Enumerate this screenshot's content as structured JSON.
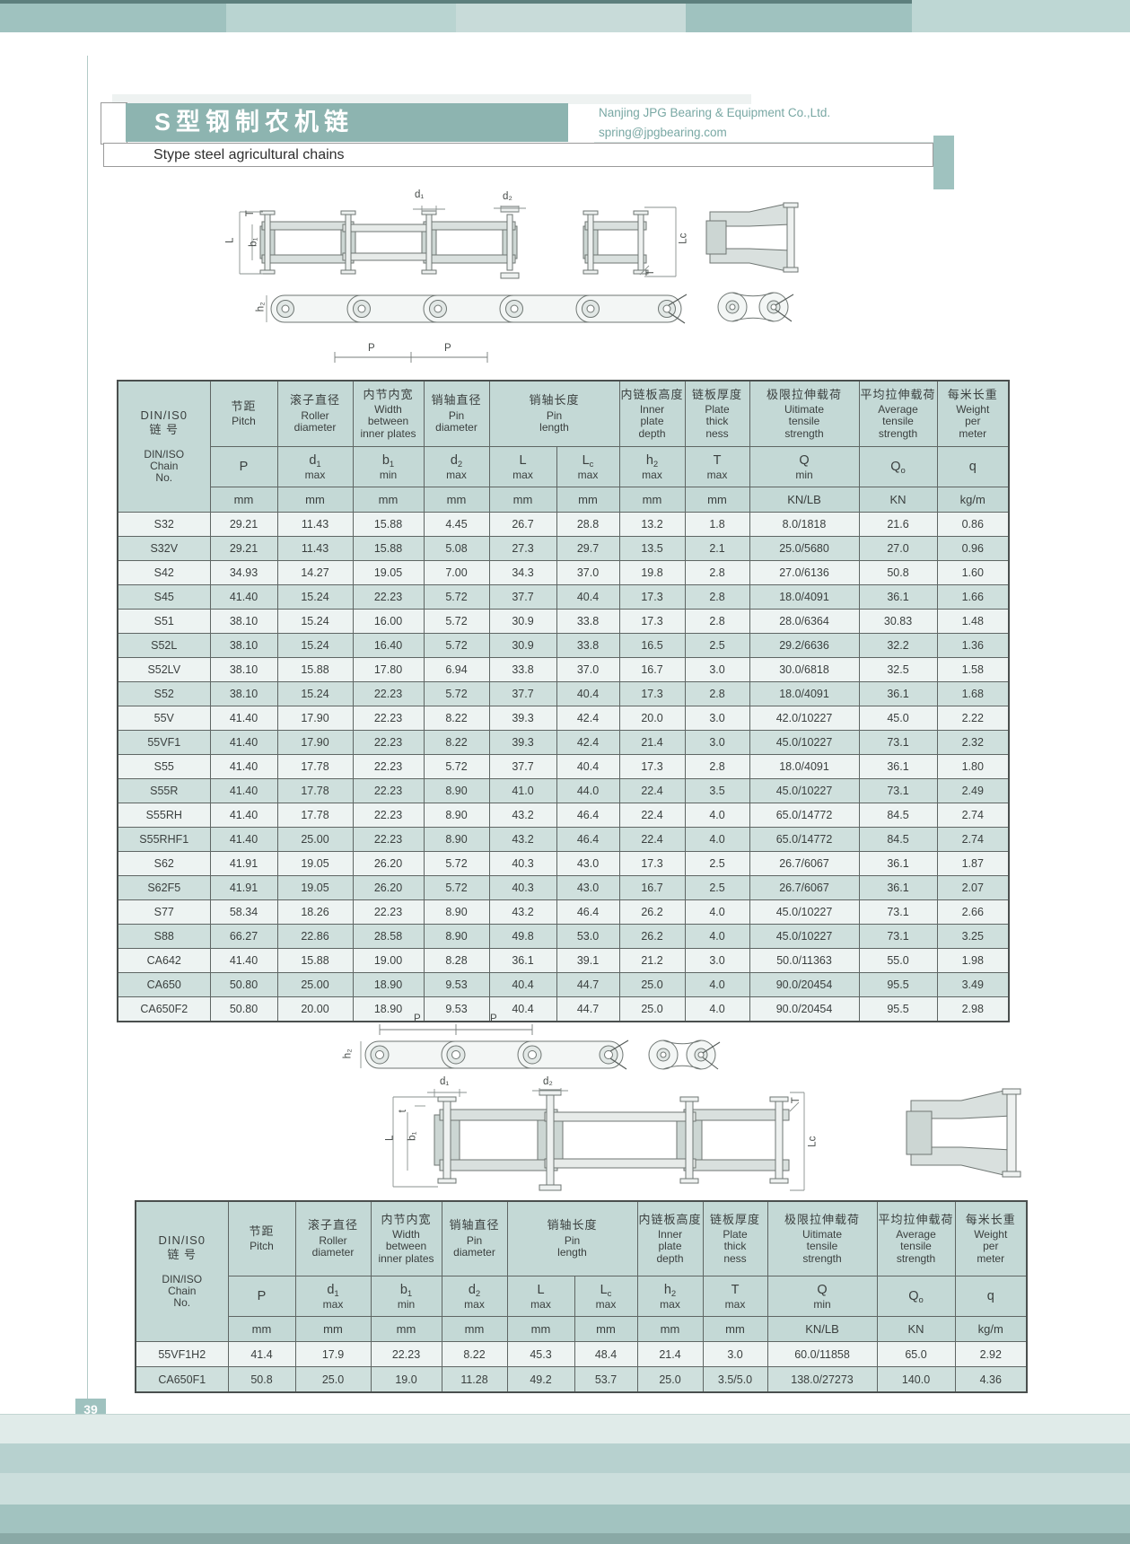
{
  "page": {
    "number": "39",
    "title_cn": "S型钢制农机链",
    "title_en": "Stype steel agricultural chains",
    "company": "Nanjing JPG Bearing & Equipment Co.,Ltd.",
    "email": "spring@jpgbearing.com"
  },
  "colors": {
    "accent_teal": "#8db4b0",
    "band_medium": "#9fc2bf",
    "band_light": "#b9d4d1",
    "band_lighter": "#c8dbd9",
    "table_header_bg": "#c4d9d6",
    "row_light": "#edf3f2",
    "row_teal": "#cfe0dd"
  },
  "diagram_labels": {
    "d1": "d₁",
    "d2": "d₂",
    "b1": "b₁",
    "h2": "h₂",
    "L": "L",
    "Lc": "Lc",
    "T": "T",
    "t": "t",
    "P": "P"
  },
  "table_header": {
    "chain": {
      "cn": "DIN/IS0\n链 号",
      "en": "DIN/ISO\nChain\nNo."
    },
    "cols": {
      "pitch": {
        "cn": "节距",
        "en": "Pitch"
      },
      "roller": {
        "cn": "滚子直径",
        "en": "Roller\ndiameter"
      },
      "width": {
        "cn": "内节内宽",
        "en": "Width\nbetween\ninner plates"
      },
      "pin_dia": {
        "cn": "销轴直径",
        "en": "Pin\ndiameter"
      },
      "pin_len": {
        "cn": "销轴长度",
        "en": "Pin\nlength"
      },
      "inner": {
        "cn": "内链板高度",
        "en": "Inner\nplate\ndepth"
      },
      "plate": {
        "cn": "链板厚度",
        "en": "Plate\nthick\nness"
      },
      "ultimate": {
        "cn": "极限拉伸载荷",
        "en": "Uitimate\ntensile\nstrength"
      },
      "average": {
        "cn": "平均拉伸载荷",
        "en": "Average\ntensile\nstrength"
      },
      "weight": {
        "cn": "每米长重",
        "en": "Weight\nper\nmeter"
      }
    },
    "symbols": {
      "p": {
        "b": "P",
        "s": "",
        "c": ""
      },
      "d1": {
        "b": "d",
        "s": "1",
        "c": "max"
      },
      "b1": {
        "b": "b",
        "s": "1",
        "c": "min"
      },
      "d2": {
        "b": "d",
        "s": "2",
        "c": "max"
      },
      "L": {
        "b": "L",
        "s": "",
        "c": "max"
      },
      "Lc": {
        "b": "L",
        "s": "c",
        "c": "max"
      },
      "h2": {
        "b": "h",
        "s": "2",
        "c": "max"
      },
      "T": {
        "b": "T",
        "s": "",
        "c": "max"
      },
      "Q": {
        "b": "Q",
        "s": "",
        "c": "min"
      },
      "Qo": {
        "b": "Q",
        "s": "o",
        "c": ""
      },
      "q": {
        "b": "q",
        "s": "",
        "c": ""
      }
    },
    "units": [
      "mm",
      "mm",
      "mm",
      "mm",
      "mm",
      "mm",
      "mm",
      "mm",
      "KN/LB",
      "KN",
      "kg/m"
    ]
  },
  "table1": {
    "rows": [
      [
        "S32",
        "29.21",
        "11.43",
        "15.88",
        "4.45",
        "26.7",
        "28.8",
        "13.2",
        "1.8",
        "8.0/1818",
        "21.6",
        "0.86"
      ],
      [
        "S32V",
        "29.21",
        "11.43",
        "15.88",
        "5.08",
        "27.3",
        "29.7",
        "13.5",
        "2.1",
        "25.0/5680",
        "27.0",
        "0.96"
      ],
      [
        "S42",
        "34.93",
        "14.27",
        "19.05",
        "7.00",
        "34.3",
        "37.0",
        "19.8",
        "2.8",
        "27.0/6136",
        "50.8",
        "1.60"
      ],
      [
        "S45",
        "41.40",
        "15.24",
        "22.23",
        "5.72",
        "37.7",
        "40.4",
        "17.3",
        "2.8",
        "18.0/4091",
        "36.1",
        "1.66"
      ],
      [
        "S51",
        "38.10",
        "15.24",
        "16.00",
        "5.72",
        "30.9",
        "33.8",
        "17.3",
        "2.8",
        "28.0/6364",
        "30.83",
        "1.48"
      ],
      [
        "S52L",
        "38.10",
        "15.24",
        "16.40",
        "5.72",
        "30.9",
        "33.8",
        "16.5",
        "2.5",
        "29.2/6636",
        "32.2",
        "1.36"
      ],
      [
        "S52LV",
        "38.10",
        "15.88",
        "17.80",
        "6.94",
        "33.8",
        "37.0",
        "16.7",
        "3.0",
        "30.0/6818",
        "32.5",
        "1.58"
      ],
      [
        "S52",
        "38.10",
        "15.24",
        "22.23",
        "5.72",
        "37.7",
        "40.4",
        "17.3",
        "2.8",
        "18.0/4091",
        "36.1",
        "1.68"
      ],
      [
        "55V",
        "41.40",
        "17.90",
        "22.23",
        "8.22",
        "39.3",
        "42.4",
        "20.0",
        "3.0",
        "42.0/10227",
        "45.0",
        "2.22"
      ],
      [
        "55VF1",
        "41.40",
        "17.90",
        "22.23",
        "8.22",
        "39.3",
        "42.4",
        "21.4",
        "3.0",
        "45.0/10227",
        "73.1",
        "2.32"
      ],
      [
        "S55",
        "41.40",
        "17.78",
        "22.23",
        "5.72",
        "37.7",
        "40.4",
        "17.3",
        "2.8",
        "18.0/4091",
        "36.1",
        "1.80"
      ],
      [
        "S55R",
        "41.40",
        "17.78",
        "22.23",
        "8.90",
        "41.0",
        "44.0",
        "22.4",
        "3.5",
        "45.0/10227",
        "73.1",
        "2.49"
      ],
      [
        "S55RH",
        "41.40",
        "17.78",
        "22.23",
        "8.90",
        "43.2",
        "46.4",
        "22.4",
        "4.0",
        "65.0/14772",
        "84.5",
        "2.74"
      ],
      [
        "S55RHF1",
        "41.40",
        "25.00",
        "22.23",
        "8.90",
        "43.2",
        "46.4",
        "22.4",
        "4.0",
        "65.0/14772",
        "84.5",
        "2.74"
      ],
      [
        "S62",
        "41.91",
        "19.05",
        "26.20",
        "5.72",
        "40.3",
        "43.0",
        "17.3",
        "2.5",
        "26.7/6067",
        "36.1",
        "1.87"
      ],
      [
        "S62F5",
        "41.91",
        "19.05",
        "26.20",
        "5.72",
        "40.3",
        "43.0",
        "16.7",
        "2.5",
        "26.7/6067",
        "36.1",
        "2.07"
      ],
      [
        "S77",
        "58.34",
        "18.26",
        "22.23",
        "8.90",
        "43.2",
        "46.4",
        "26.2",
        "4.0",
        "45.0/10227",
        "73.1",
        "2.66"
      ],
      [
        "S88",
        "66.27",
        "22.86",
        "28.58",
        "8.90",
        "49.8",
        "53.0",
        "26.2",
        "4.0",
        "45.0/10227",
        "73.1",
        "3.25"
      ],
      [
        "CA642",
        "41.40",
        "15.88",
        "19.00",
        "8.28",
        "36.1",
        "39.1",
        "21.2",
        "3.0",
        "50.0/11363",
        "55.0",
        "1.98"
      ],
      [
        "CA650",
        "50.80",
        "25.00",
        "18.90",
        "9.53",
        "40.4",
        "44.7",
        "25.0",
        "4.0",
        "90.0/20454",
        "95.5",
        "3.49"
      ],
      [
        "CA650F2",
        "50.80",
        "20.00",
        "18.90",
        "9.53",
        "40.4",
        "44.7",
        "25.0",
        "4.0",
        "90.0/20454",
        "95.5",
        "2.98"
      ]
    ]
  },
  "table2": {
    "rows": [
      [
        "55VF1H2",
        "41.4",
        "17.9",
        "22.23",
        "8.22",
        "45.3",
        "48.4",
        "21.4",
        "3.0",
        "60.0/11858",
        "65.0",
        "2.92"
      ],
      [
        "CA650F1",
        "50.8",
        "25.0",
        "19.0",
        "11.28",
        "49.2",
        "53.7",
        "25.0",
        "3.5/5.0",
        "138.0/27273",
        "140.0",
        "4.36"
      ]
    ]
  }
}
